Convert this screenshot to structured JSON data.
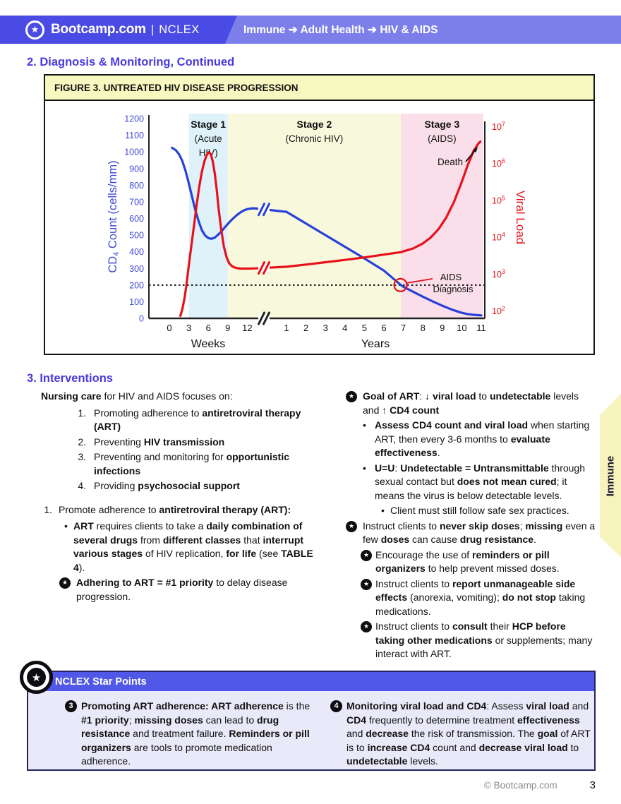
{
  "colors": {
    "accent": "#4939DF",
    "header_dark": "#4A4BE4",
    "header_light": "#7C7FEA",
    "star_bar": "#5158E8",
    "star_body": "#E9E9F9",
    "tab_yellow": "#F7F3BD",
    "fig_title_bg": "#F6F8BF"
  },
  "icons": {
    "star": "★",
    "bullet": "•"
  },
  "header": {
    "logo_text": "Bootcamp.com",
    "divider": "|",
    "product": "NCLEX",
    "breadcrumb": "Immune ➔ Adult Health ➔ HIV & AIDS"
  },
  "side_tab": {
    "label": "Immune"
  },
  "footer": {
    "copyright": "© Bootcamp.com",
    "page_number": "3"
  },
  "sections": {
    "diagnosis_heading": "2. Diagnosis & Monitoring, Continued",
    "figure_title": "FIGURE 3. UNTREATED HIV DISEASE PROGRESSION",
    "interventions": {
      "heading": "3. Interventions",
      "intro": [
        {
          "t": "Nursing care",
          "b": true
        },
        {
          "t": " for HIV and AIDS focuses on:"
        }
      ],
      "nursing_list": {
        "markers": [
          "1.",
          "2.",
          "3.",
          "4."
        ],
        "items": [
          [
            {
              "t": "Promoting adherence to "
            },
            {
              "t": "antiretroviral therapy (ART)",
              "b": true
            }
          ],
          [
            {
              "t": "Preventing "
            },
            {
              "t": "HIV transmission",
              "b": true
            }
          ],
          [
            {
              "t": "Preventing and monitoring for "
            },
            {
              "t": "opportunistic infections",
              "b": true
            }
          ],
          [
            {
              "t": "Providing "
            },
            {
              "t": "psychosocial support",
              "b": true
            }
          ]
        ]
      },
      "promote": {
        "marker": "1.",
        "text": [
          {
            "t": "Promote adherence to "
          },
          {
            "t": "antiretroviral therapy (ART):",
            "b": true
          }
        ]
      },
      "art_bullet": [
        {
          "t": "ART",
          "b": true
        },
        {
          "t": " requires clients to take a "
        },
        {
          "t": "daily combination of several drugs",
          "b": true
        },
        {
          "t": " from "
        },
        {
          "t": "different classes",
          "b": true
        },
        {
          "t": " that "
        },
        {
          "t": "interrupt various stages",
          "b": true
        },
        {
          "t": " of HIV replication, "
        },
        {
          "t": "for life",
          "b": true
        },
        {
          "t": " (see "
        },
        {
          "t": "TABLE 4",
          "b": true
        },
        {
          "t": ")."
        }
      ],
      "adhere_star": [
        {
          "t": "Adhering to ART = #1 priority",
          "b": true
        },
        {
          "t": " to delay disease progression."
        }
      ],
      "right": {
        "goal_star": [
          {
            "t": "Goal of ART",
            "b": true
          },
          {
            "t": ": "
          },
          {
            "t": "↓ viral load",
            "b": true
          },
          {
            "t": " to "
          },
          {
            "t": "undetectable",
            "b": true
          },
          {
            "t": " levels and "
          },
          {
            "t": "↑ CD4 count",
            "b": true
          }
        ],
        "assess_bullet": [
          {
            "t": "Assess CD4 count and viral load",
            "b": true
          },
          {
            "t": " when starting ART, then every 3-6 months to "
          },
          {
            "t": "evaluate effectiveness",
            "b": true
          },
          {
            "t": "."
          }
        ],
        "uu_bullet": [
          {
            "t": "U=U",
            "b": true
          },
          {
            "t": ": "
          },
          {
            "t": "Undetectable = Untransmittable",
            "b": true
          },
          {
            "t": " through sexual contact but "
          },
          {
            "t": "does not mean cured",
            "b": true
          },
          {
            "t": "; it means the virus is below detectable levels."
          }
        ],
        "safe_bullet": [
          {
            "t": "Client must still follow safe sex practices."
          }
        ],
        "skip_star": [
          {
            "t": "Instruct clients to "
          },
          {
            "t": "never skip doses",
            "b": true
          },
          {
            "t": "; "
          },
          {
            "t": "missing",
            "b": true
          },
          {
            "t": " even a few "
          },
          {
            "t": "doses",
            "b": true
          },
          {
            "t": " can cause "
          },
          {
            "t": "drug resistance",
            "b": true
          },
          {
            "t": "."
          }
        ],
        "remind_star": [
          {
            "t": "Encourage the use of "
          },
          {
            "t": "reminders or pill organizers",
            "b": true
          },
          {
            "t": " to help prevent missed doses."
          }
        ],
        "side_star": [
          {
            "t": "Instruct clients to "
          },
          {
            "t": "report unmanageable side effects",
            "b": true
          },
          {
            "t": " (anorexia, vomiting); "
          },
          {
            "t": "do not stop",
            "b": true
          },
          {
            "t": " taking medications."
          }
        ],
        "hcp_star": [
          {
            "t": "Instruct clients to "
          },
          {
            "t": "consult",
            "b": true
          },
          {
            "t": " their "
          },
          {
            "t": "HCP before taking other medications",
            "b": true
          },
          {
            "t": " or supplements; many interact with ART."
          }
        ]
      }
    },
    "star_points": {
      "heading": "NCLEX Star Points",
      "items": [
        {
          "badge": "3",
          "text": [
            {
              "t": "Promoting ART adherence: ART adherence",
              "b": true
            },
            {
              "t": " is the "
            },
            {
              "t": "#1 priority",
              "b": true
            },
            {
              "t": "; "
            },
            {
              "t": "missing doses",
              "b": true
            },
            {
              "t": " can lead to "
            },
            {
              "t": "drug resistance",
              "b": true
            },
            {
              "t": " and treatment failure. "
            },
            {
              "t": "Reminders or pill organizers",
              "b": true
            },
            {
              "t": " are tools to promote medication adherence."
            }
          ]
        },
        {
          "badge": "4",
          "text": [
            {
              "t": "Monitoring viral load and CD4",
              "b": true
            },
            {
              "t": ": Assess "
            },
            {
              "t": "viral load",
              "b": true
            },
            {
              "t": " and "
            },
            {
              "t": "CD4",
              "b": true
            },
            {
              "t": " frequently to determine treatment "
            },
            {
              "t": "effectiveness",
              "b": true
            },
            {
              "t": " and "
            },
            {
              "t": "decrease",
              "b": true
            },
            {
              "t": " the risk of transmission. The "
            },
            {
              "t": "goal",
              "b": true
            },
            {
              "t": " of ART is to "
            },
            {
              "t": "increase CD4",
              "b": true
            },
            {
              "t": " count and "
            },
            {
              "t": "decrease viral load",
              "b": true
            },
            {
              "t": " to "
            },
            {
              "t": "undetectable",
              "b": true
            },
            {
              "t": " levels."
            }
          ]
        }
      ]
    }
  },
  "chart_data": {
    "type": "line",
    "title": "FIGURE 3. UNTREATED HIV DISEASE PROGRESSION",
    "grid": false,
    "x_axis": {
      "segments": [
        {
          "label": "Weeks",
          "ticks": [
            0,
            3,
            6,
            9,
            12
          ]
        },
        {
          "label": "Years",
          "ticks": [
            1,
            2,
            3,
            4,
            5,
            6,
            7,
            8,
            9,
            10,
            11
          ]
        }
      ],
      "axis_break_between_segments": true
    },
    "y_left": {
      "label_parts": [
        "CD",
        {
          "sub": "4"
        },
        " Count (cells/mm)"
      ],
      "color": "#3E49D8",
      "ticks": [
        0,
        100,
        200,
        300,
        400,
        500,
        600,
        700,
        800,
        900,
        1000,
        1100,
        1200
      ],
      "range": [
        0,
        1200
      ]
    },
    "y_right": {
      "label": "Viral Load",
      "color": "#E6111B",
      "tick_exponents": [
        7,
        6,
        5,
        4,
        3,
        2
      ],
      "scale": "log10",
      "range_exponents": [
        2,
        7
      ]
    },
    "stages": [
      {
        "name": "Stage 1",
        "sub": [
          "(Acute",
          "HIV)"
        ],
        "from": {
          "week": 3
        },
        "to": {
          "week": 9
        },
        "bg": "#DFF2FA"
      },
      {
        "name": "Stage 2",
        "sub": [
          "(Chronic HIV)"
        ],
        "from": {
          "week": 9
        },
        "to": {
          "year": 6.87
        },
        "bg": "#F8F8DC"
      },
      {
        "name": "Stage 3",
        "sub": [
          "(AIDS)"
        ],
        "from": {
          "year": 6.87
        },
        "to": {
          "year": 11.1
        },
        "bg": "#FADEE9"
      }
    ],
    "threshold_line": {
      "value": 200,
      "style": "dotted"
    },
    "series": [
      {
        "name": "CD4 count",
        "color": "#2840D8",
        "weeks": [
          [
            0.4,
            1025
          ],
          [
            1,
            1010
          ],
          [
            1.5,
            985
          ],
          [
            2,
            945
          ],
          [
            2.5,
            885
          ],
          [
            3,
            810
          ],
          [
            3.5,
            730
          ],
          [
            4,
            650
          ],
          [
            4.5,
            585
          ],
          [
            5,
            530
          ],
          [
            5.5,
            498
          ],
          [
            6,
            482
          ],
          [
            6.5,
            478
          ],
          [
            7,
            485
          ],
          [
            7.5,
            502
          ],
          [
            8,
            522
          ],
          [
            8.5,
            545
          ],
          [
            9,
            567
          ],
          [
            9.5,
            588
          ],
          [
            10,
            607
          ],
          [
            10.5,
            624
          ],
          [
            11,
            638
          ],
          [
            11.5,
            649
          ],
          [
            12,
            656
          ],
          [
            12.5,
            660
          ],
          [
            13,
            661
          ],
          [
            13.5,
            660
          ],
          [
            14,
            657
          ]
        ],
        "years": [
          [
            1,
            640
          ],
          [
            2,
            570
          ],
          [
            3,
            500
          ],
          [
            4,
            430
          ],
          [
            5,
            360
          ],
          [
            6,
            287
          ],
          [
            6.87,
            200
          ],
          [
            7,
            190
          ],
          [
            7.5,
            160
          ],
          [
            8,
            130
          ],
          [
            8.5,
            102
          ],
          [
            9,
            76
          ],
          [
            9.5,
            52
          ],
          [
            10,
            33
          ],
          [
            10.3,
            26
          ],
          [
            10.6,
            21
          ],
          [
            11,
            18
          ]
        ]
      },
      {
        "name": "Viral load",
        "color": "#E6111B",
        "note": "digitized against left axis for plotting; true scale is log10 on right axis",
        "weeks": [
          [
            1.7,
            15
          ],
          [
            2,
            55
          ],
          [
            2.3,
            115
          ],
          [
            2.6,
            190
          ],
          [
            3,
            320
          ],
          [
            3.4,
            440
          ],
          [
            3.8,
            560
          ],
          [
            4.2,
            680
          ],
          [
            4.6,
            790
          ],
          [
            5,
            880
          ],
          [
            5.4,
            945
          ],
          [
            5.8,
            985
          ],
          [
            6.1,
            998
          ],
          [
            6.4,
            985
          ],
          [
            6.7,
            940
          ],
          [
            7,
            868
          ],
          [
            7.3,
            770
          ],
          [
            7.6,
            655
          ],
          [
            8,
            530
          ],
          [
            8.4,
            430
          ],
          [
            8.8,
            368
          ],
          [
            9.2,
            332
          ],
          [
            9.6,
            315
          ],
          [
            10,
            306
          ],
          [
            10.5,
            301
          ],
          [
            11,
            299
          ],
          [
            12,
            299
          ],
          [
            13,
            300
          ],
          [
            14,
            302
          ]
        ],
        "years": [
          [
            1,
            310
          ],
          [
            2,
            323
          ],
          [
            3,
            337
          ],
          [
            4,
            351
          ],
          [
            5,
            366
          ],
          [
            6,
            383
          ],
          [
            6.87,
            398
          ],
          [
            7.5,
            420
          ],
          [
            8,
            450
          ],
          [
            8.4,
            485
          ],
          [
            8.8,
            535
          ],
          [
            9.2,
            605
          ],
          [
            9.6,
            700
          ],
          [
            10,
            820
          ],
          [
            10.3,
            920
          ],
          [
            10.6,
            1005
          ],
          [
            10.85,
            1050
          ],
          [
            10.95,
            1062
          ]
        ]
      }
    ],
    "annotations": {
      "death": "Death",
      "aids": [
        "AIDS",
        "Diagnosis"
      ]
    }
  }
}
